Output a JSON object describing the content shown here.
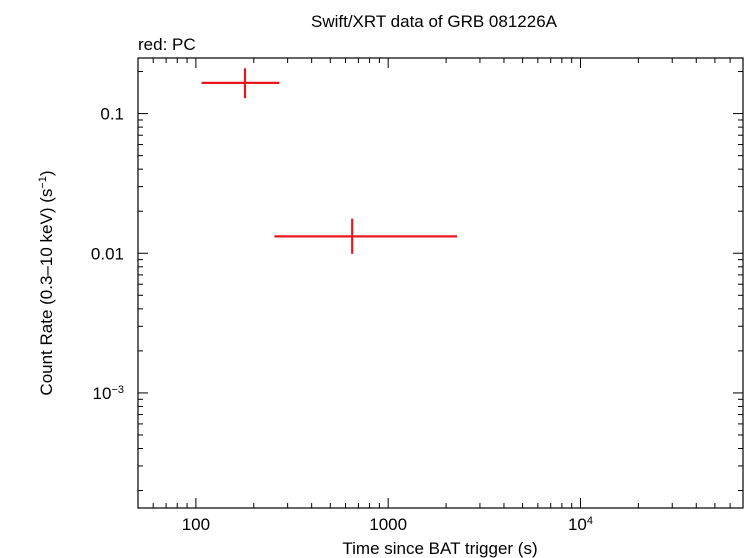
{
  "chart_data": {
    "type": "scatter",
    "title": "Swift/XRT data of GRB 081226A",
    "subtitle": "red: PC",
    "xlabel": "Time since BAT trigger (s)",
    "ylabel": "Count Rate (0.3–10 keV) (s",
    "ylabel_sup": "−1",
    "ylabel_end": ")",
    "xscale": "log",
    "yscale": "log",
    "xlim": [
      50,
      70000
    ],
    "ylim": [
      0.00015,
      0.25
    ],
    "x_ticks": [
      {
        "value": 100,
        "label": "100",
        "sup": ""
      },
      {
        "value": 1000,
        "label": "1000",
        "sup": ""
      },
      {
        "value": 10000,
        "label": "10",
        "sup": "4"
      }
    ],
    "y_ticks": [
      {
        "value": 0.1,
        "label": "0.1",
        "sup": ""
      },
      {
        "value": 0.01,
        "label": "0.01",
        "sup": ""
      },
      {
        "value": 0.001,
        "label": "10",
        "sup": "−3"
      }
    ],
    "grid": false,
    "series": [
      {
        "color": "#e8181a",
        "points": [
          {
            "x": 180,
            "x_lo": 107,
            "x_hi": 272,
            "y": 0.166,
            "y_lo": 0.129,
            "y_hi": 0.211
          },
          {
            "x": 650,
            "x_lo": 256,
            "x_hi": 2280,
            "y": 0.0132,
            "y_lo": 0.0099,
            "y_hi": 0.0177
          }
        ]
      }
    ]
  }
}
